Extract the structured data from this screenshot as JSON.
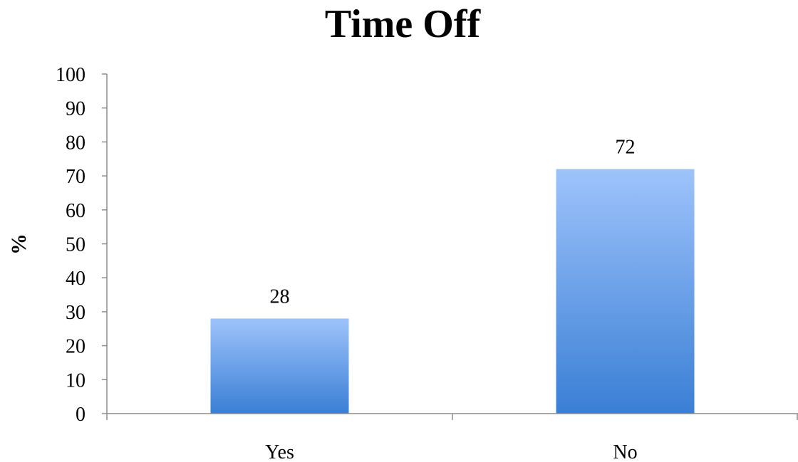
{
  "chart_data": {
    "type": "bar",
    "title": "Time Off",
    "xlabel": "",
    "ylabel": "%",
    "categories": [
      "Yes",
      "No"
    ],
    "values": [
      28,
      72
    ],
    "ylim": [
      0,
      100
    ],
    "yticks": [
      0,
      10,
      20,
      30,
      40,
      50,
      60,
      70,
      80,
      90,
      100
    ],
    "data_labels": [
      "28",
      "72"
    ],
    "grid": false,
    "legend": "none",
    "bar_color_top": "#9ec3fb",
    "bar_color_bottom": "#3a7fd5"
  }
}
